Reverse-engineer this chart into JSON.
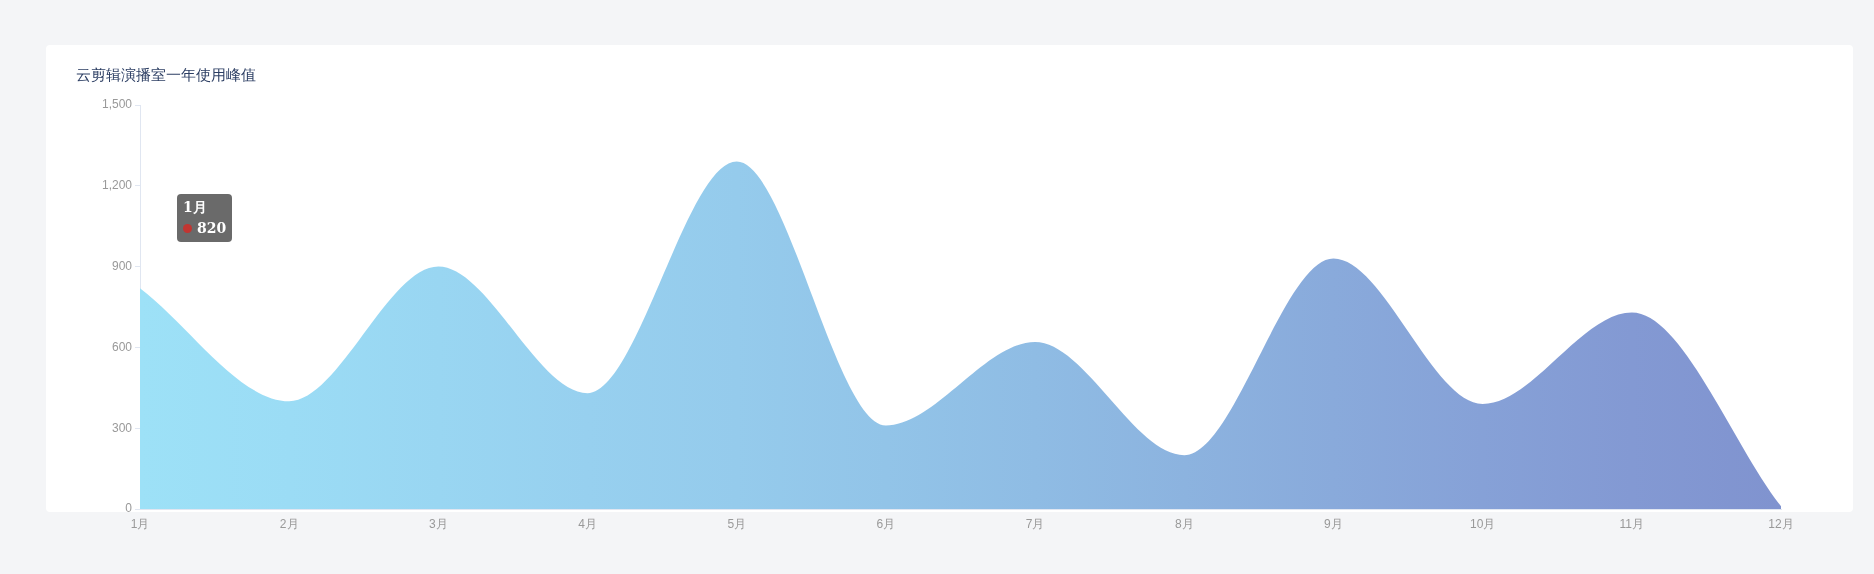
{
  "chart_data": {
    "type": "area",
    "title": "云剪辑演播室一年使用峰值",
    "categories": [
      "1月",
      "2月",
      "3月",
      "4月",
      "5月",
      "6月",
      "7月",
      "8月",
      "9月",
      "10月",
      "11月",
      "12月"
    ],
    "series": [
      {
        "values": [
          820,
          400,
          900,
          430,
          1290,
          310,
          620,
          200,
          930,
          390,
          730,
          10
        ],
        "colors": [
          "#9de1f7",
          "#9bdcf5",
          "#99d6f2",
          "#97d0ef",
          "#95cbec",
          "#92c4e8",
          "#8fbce4",
          "#8cb3df",
          "#89aadb",
          "#86a1d7",
          "#8399d3",
          "#8093cf"
        ]
      }
    ],
    "ylim": [
      0,
      1500
    ],
    "yticks": [
      {
        "value": 0,
        "label": "0"
      },
      {
        "value": 300,
        "label": "300"
      },
      {
        "value": 600,
        "label": "600"
      },
      {
        "value": 900,
        "label": "900"
      },
      {
        "value": 1200,
        "label": "1,200"
      },
      {
        "value": 1500,
        "label": "1,500"
      }
    ],
    "grid": false,
    "legend": false,
    "annotations": [
      "1月\n820"
    ]
  }
}
